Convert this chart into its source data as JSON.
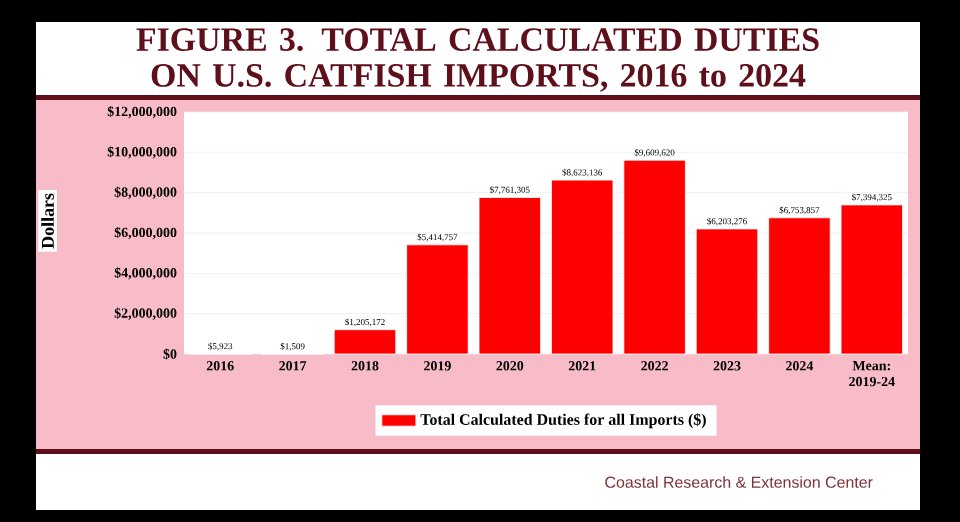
{
  "chart_data": {
    "type": "bar",
    "title": "FIGURE 3. TOTAL CALCULATED DUTIES ON U.S. CATFISH IMPORTS, 2016 to 2024",
    "ylabel": "Dollars",
    "categories": [
      "2016",
      "2017",
      "2018",
      "2019",
      "2020",
      "2021",
      "2022",
      "2023",
      "2024",
      "Mean: 2019-24"
    ],
    "series": [
      {
        "name": "Total Calculated Duties for all Imports ($)",
        "color": "#ff0000",
        "values": [
          5923,
          1509,
          1205172,
          5414757,
          7761305,
          8623136,
          9609620,
          6203276,
          6753857,
          7394325
        ],
        "value_labels": [
          "$5,923",
          "$1,509",
          "$1,205,172",
          "$5,414,757",
          "$7,761,305",
          "$8,623,136",
          "$9,609,620",
          "$6,203,276",
          "$6,753,857",
          "$7,394,325"
        ]
      }
    ],
    "ylim": [
      0,
      12000000
    ],
    "yticks": [
      {
        "value": 0,
        "label": "$0"
      },
      {
        "value": 2000000,
        "label": "$2,000,000"
      },
      {
        "value": 4000000,
        "label": "$4,000,000"
      },
      {
        "value": 6000000,
        "label": "$6,000,000"
      },
      {
        "value": 8000000,
        "label": "$8,000,000"
      },
      {
        "value": 10000000,
        "label": "$10,000,000"
      },
      {
        "value": 12000000,
        "label": "$12,000,000"
      }
    ],
    "grid": "y",
    "legend": "bottom",
    "annotations": [
      "Coastal Research & Extension Center"
    ]
  }
}
